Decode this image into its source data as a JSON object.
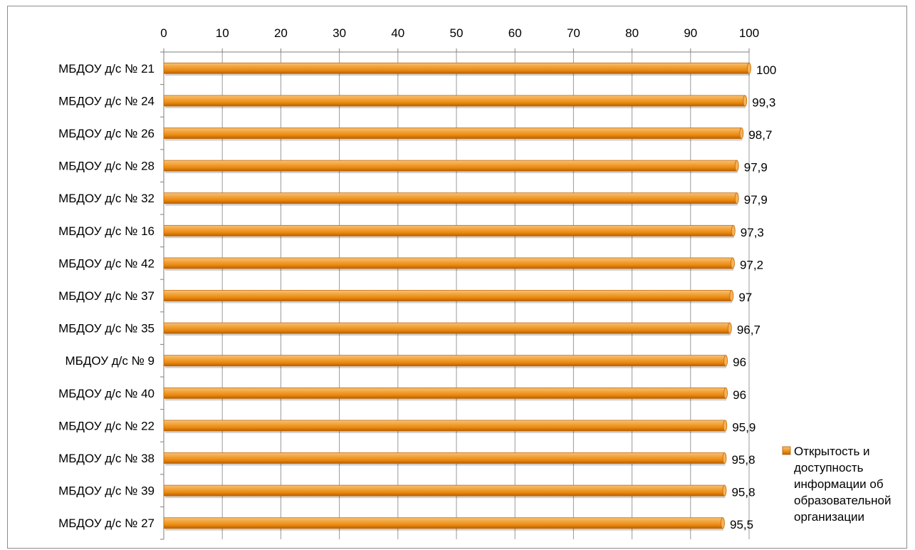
{
  "chart_data": {
    "type": "bar",
    "orientation": "horizontal",
    "categories": [
      "МБДОУ д/с № 21",
      "МБДОУ д/с № 24",
      "МБДОУ д/с № 26",
      "МБДОУ д/с № 28",
      "МБДОУ д/с № 32",
      "МБДОУ д/с № 16",
      "МБДОУ д/с № 42",
      "МБДОУ д/с № 37",
      "МБДОУ д/с № 35",
      "МБДОУ д/с № 9",
      "МБДОУ д/с № 40",
      "МБДОУ д/с № 22",
      "МБДОУ д/с № 38",
      "МБДОУ д/с № 39",
      "МБДОУ д/с № 27"
    ],
    "series": [
      {
        "name": "Открытость и доступность информации об образовательной организации",
        "legend_lines": [
          "Открытость и",
          "доступность",
          "информации об",
          "образовательной",
          "организации"
        ],
        "values": [
          100,
          99.3,
          98.7,
          97.9,
          97.9,
          97.3,
          97.2,
          97,
          96.7,
          96,
          96,
          95.9,
          95.8,
          95.8,
          95.5
        ],
        "data_labels": [
          "100",
          "99,3",
          "98,7",
          "97,9",
          "97,9",
          "97,3",
          "97,2",
          "97",
          "96,7",
          "96",
          "96",
          "95,9",
          "95,8",
          "95,8",
          "95,5"
        ],
        "color": "#f0961e"
      }
    ],
    "xlim": [
      0,
      100
    ],
    "ticks": [
      0,
      10,
      20,
      30,
      40,
      50,
      60,
      70,
      80,
      90,
      100
    ],
    "tick_labels": [
      "0",
      "10",
      "20",
      "30",
      "40",
      "50",
      "60",
      "70",
      "80",
      "90",
      "100"
    ],
    "axis_position": "top",
    "grid": true,
    "legend_position": "right",
    "title": "",
    "xlabel": "",
    "ylabel": ""
  }
}
